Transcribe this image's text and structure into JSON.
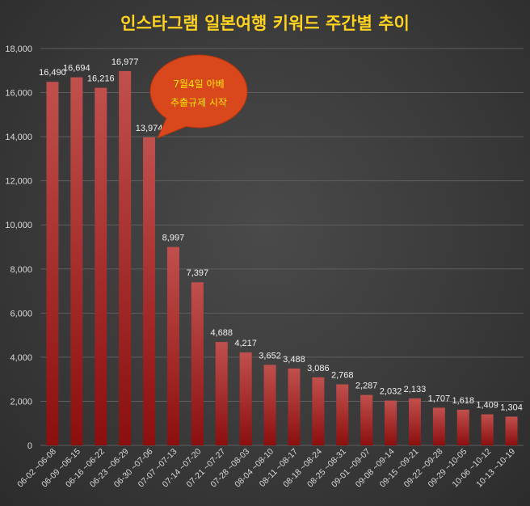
{
  "chart_data": {
    "type": "bar",
    "title": "인스타그램 일본여행 키워드 주간별 추이",
    "categories": [
      "06-02 ~06-08",
      "06-09 ~06-15",
      "06-16 ~06-22",
      "06-23 ~06-29",
      "06-30 ~07-06",
      "07-07 ~07-13",
      "07-14 ~07-20",
      "07-21 ~07-27",
      "07-28 ~08-03",
      "08-04 ~08-10",
      "08-11 ~08-17",
      "08-18 ~08-24",
      "08-25 ~08-31",
      "09-01 ~09-07",
      "09-08 ~09-14",
      "09-15 ~09-21",
      "09-22 ~09-28",
      "09-29 ~10-05",
      "10-06 ~10-12",
      "10-13 ~10-19"
    ],
    "values": [
      16490,
      16694,
      16216,
      16977,
      13974,
      8997,
      7397,
      4688,
      4217,
      3652,
      3488,
      3086,
      2768,
      2287,
      2032,
      2133,
      1707,
      1618,
      1409,
      1304
    ],
    "data_labels": [
      "16,490",
      "16,694",
      "16,216",
      "16,977",
      "13,974",
      "8,997",
      "7,397",
      "4,688",
      "4,217",
      "3,652",
      "3,488",
      "3,086",
      "2,768",
      "2,287",
      "2,032",
      "2,133",
      "1,707",
      "1,618",
      "1,409",
      "1,304"
    ],
    "ylim": [
      0,
      18000
    ],
    "yticks": [
      "0",
      "2,000",
      "4,000",
      "6,000",
      "8,000",
      "10,000",
      "12,000",
      "14,000",
      "16,000",
      "18,000"
    ],
    "grid": true,
    "bar_color_top": "#c0504d",
    "bar_color_bottom": "#8b0f0f",
    "annotation": {
      "lines": [
        "7월4일 아베",
        "추출규제 시작"
      ],
      "target_category_index": 4,
      "fill": "#d8481c",
      "text_color": "#ffe600"
    },
    "title_color": "#ffd21f",
    "background": "#3a3a3a"
  }
}
